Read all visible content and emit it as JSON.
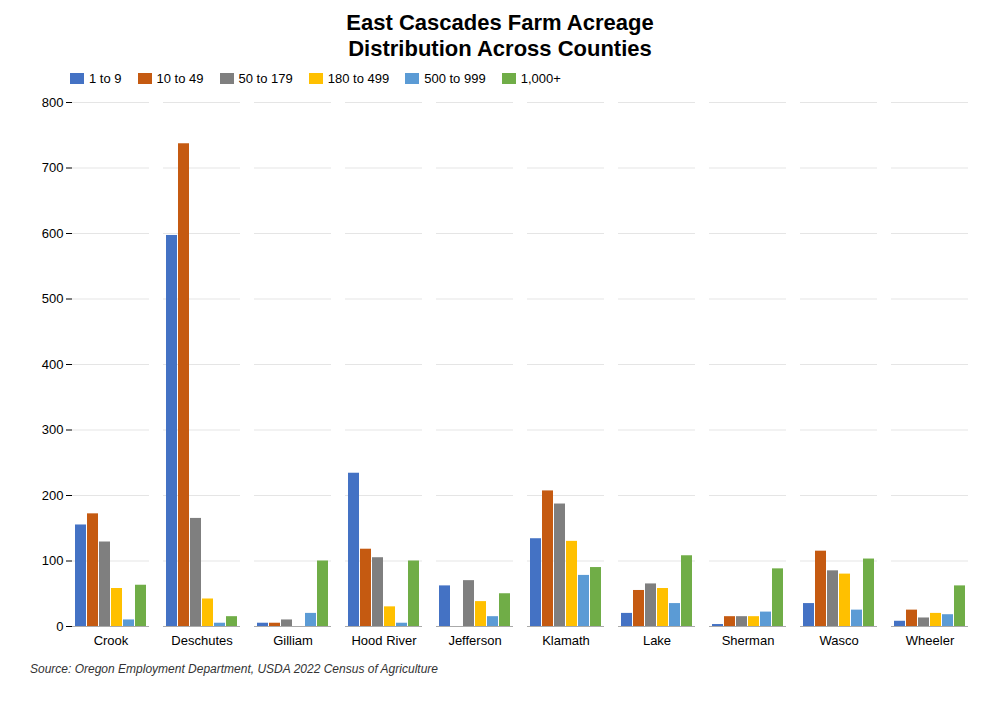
{
  "chart_data": {
    "type": "bar",
    "title": "East Cascades Farm Acreage\nDistribution Across Counties",
    "source": "Source: Oregon Employment Department, USDA 2022 Census of Agriculture",
    "categories": [
      "Crook",
      "Deschutes",
      "Gilliam",
      "Hood River",
      "Jefferson",
      "Klamath",
      "Lake",
      "Sherman",
      "Wasco",
      "Wheeler"
    ],
    "series": [
      {
        "name": "1 to 9",
        "color": "#4472C4",
        "values": [
          155,
          597,
          5,
          234,
          62,
          134,
          20,
          3,
          35,
          8
        ]
      },
      {
        "name": "10 to 49",
        "color": "#C55A11",
        "values": [
          172,
          737,
          5,
          118,
          0,
          207,
          55,
          15,
          115,
          25
        ]
      },
      {
        "name": "50 to 179",
        "color": "#7F7F7F",
        "values": [
          129,
          165,
          10,
          105,
          70,
          187,
          65,
          15,
          85,
          13
        ]
      },
      {
        "name": "180 to 499",
        "color": "#FFC000",
        "values": [
          58,
          42,
          0,
          30,
          38,
          130,
          58,
          15,
          80,
          20
        ]
      },
      {
        "name": "500 to 999",
        "color": "#5B9BD5",
        "values": [
          10,
          5,
          20,
          5,
          15,
          78,
          35,
          22,
          25,
          18
        ]
      },
      {
        "name": "1,000+",
        "color": "#70AD47",
        "values": [
          63,
          15,
          100,
          100,
          50,
          90,
          108,
          88,
          103,
          62
        ]
      }
    ],
    "ylim": [
      0,
      800
    ],
    "yticks": [
      0,
      100,
      200,
      300,
      400,
      500,
      600,
      700,
      800
    ],
    "grid": true,
    "legend": "upper left"
  }
}
